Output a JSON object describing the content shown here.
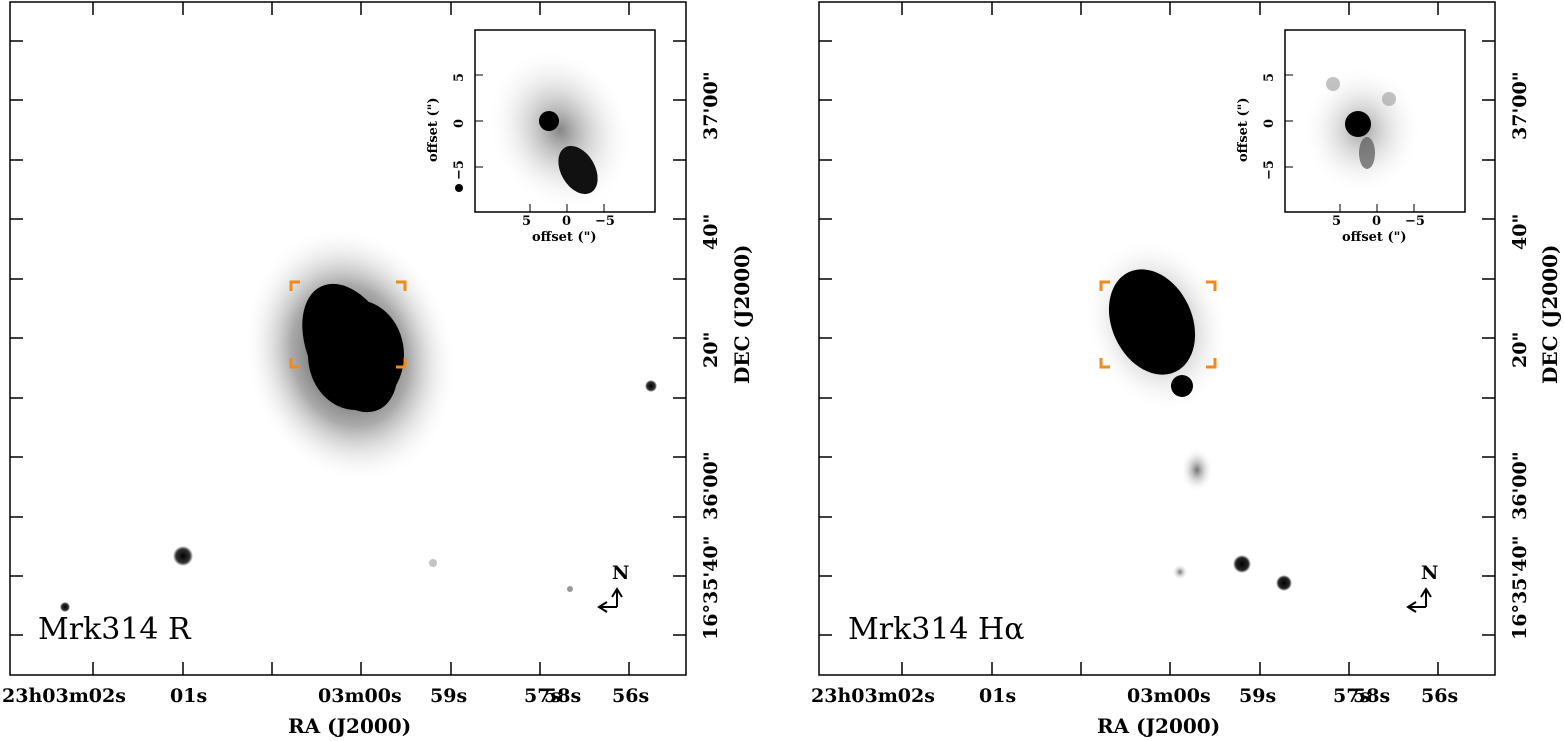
{
  "panels": [
    {
      "label": "Mrk314  R",
      "xlabel": "RA (J2000)",
      "ylabel": "DEC (J2000)",
      "ra_ticks": [
        "23h03m02s",
        "01s",
        "03m00s",
        "59s",
        "58s",
        "57s",
        "56s"
      ],
      "dec_ticks": [
        "16°35'40\"",
        "36'00\"",
        "20\"",
        "40\"",
        "37'00\""
      ],
      "inset": {
        "xlabel": "offset (\")",
        "ylabel": "offset (\")",
        "x_ticks": [
          "5",
          "0",
          "−5"
        ],
        "y_ticks": [
          "5",
          "0",
          "−5"
        ]
      },
      "compass": "N"
    },
    {
      "label": "Mrk314  Hα",
      "xlabel": "RA (J2000)",
      "ylabel": "DEC (J2000)",
      "ra_ticks": [
        "23h03m02s",
        "01s",
        "03m00s",
        "59s",
        "58s",
        "57s",
        "56s"
      ],
      "dec_ticks": [
        "16°35'40\"",
        "36'00\"",
        "20\"",
        "40\"",
        "37'00\""
      ],
      "inset": {
        "xlabel": "offset (\")",
        "ylabel": "offset (\")",
        "x_ticks": [
          "5",
          "0",
          "−5"
        ],
        "y_ticks": [
          "5",
          "0",
          "−5"
        ]
      },
      "compass": "N"
    }
  ],
  "colors": {
    "bracket": "#f08a1c",
    "ink": "#000000"
  }
}
